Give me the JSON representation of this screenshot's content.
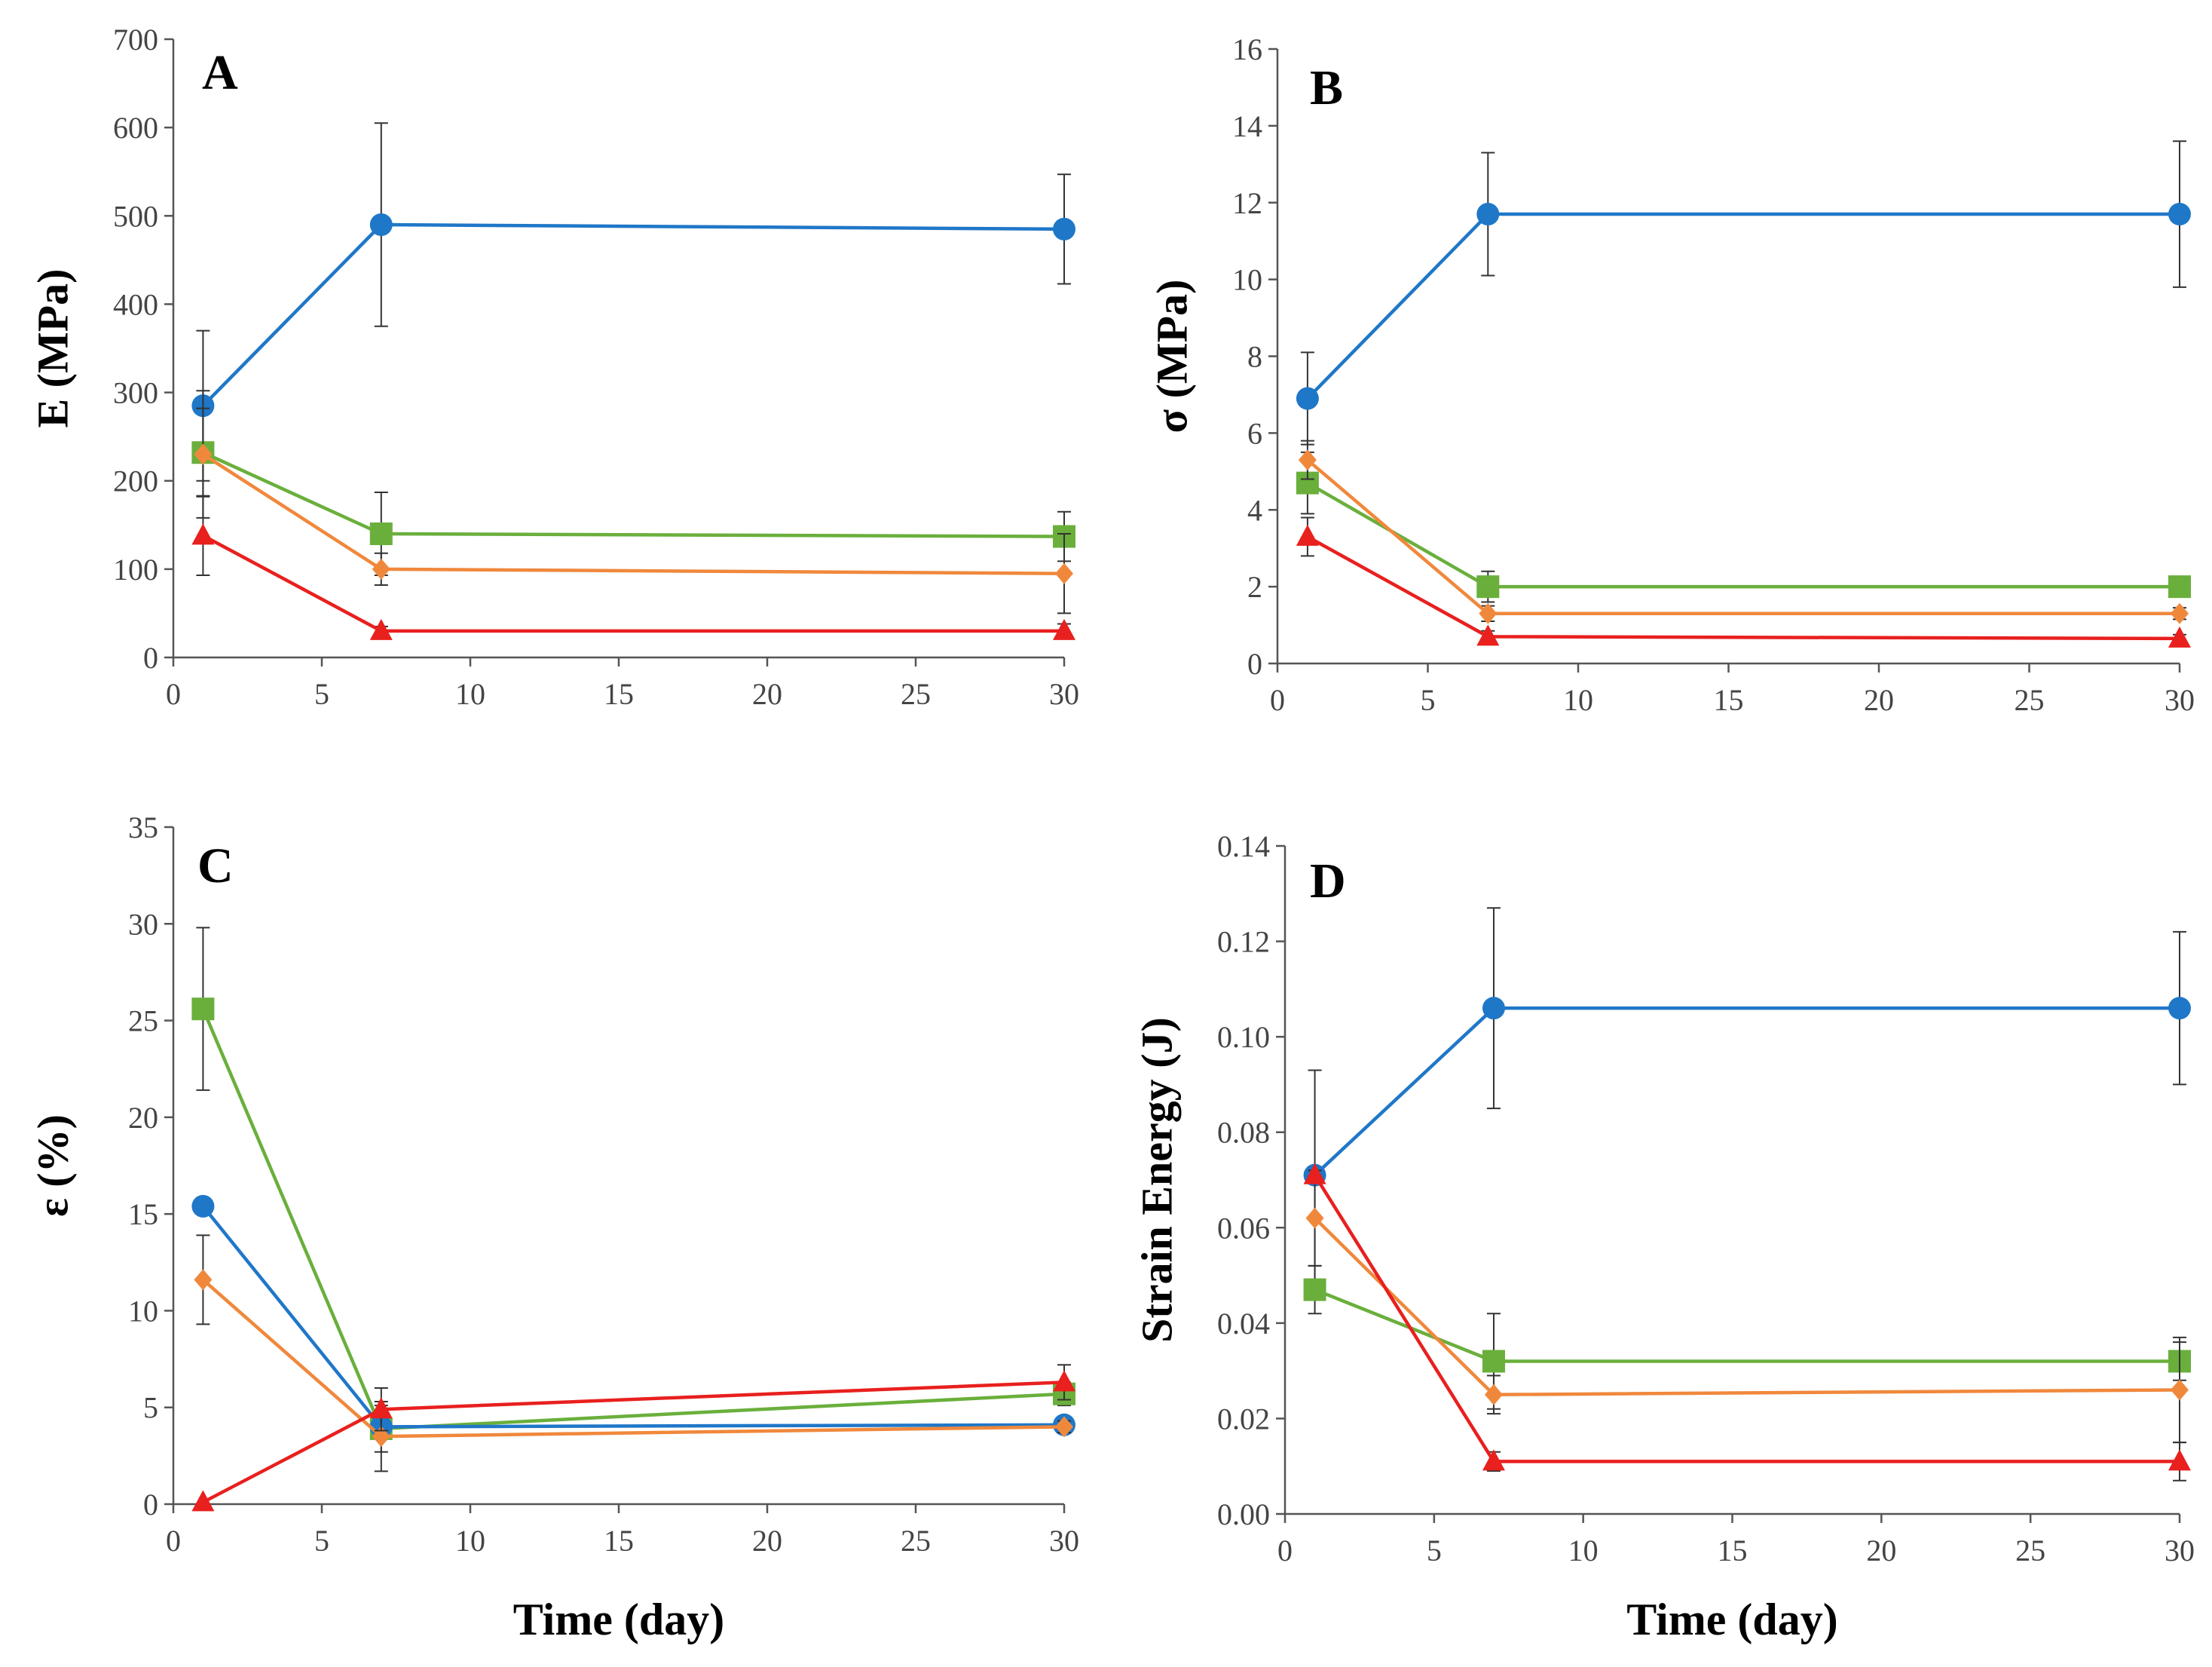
{
  "chart_data": [
    {
      "type": "line",
      "panel_label": "A",
      "xlabel": "",
      "ylabel": "E (MPa)",
      "xlim": [
        0,
        30
      ],
      "ylim": [
        0,
        700
      ],
      "xticks": [
        0,
        5,
        10,
        15,
        20,
        25,
        30
      ],
      "yticks": [
        0,
        100,
        200,
        300,
        400,
        500,
        600,
        700
      ],
      "x": [
        1,
        7,
        30
      ],
      "series": [
        {
          "name": "blue",
          "color": "#1F77C8",
          "marker": "circle",
          "values": [
            285,
            490,
            485
          ],
          "errors": [
            85,
            115,
            62
          ]
        },
        {
          "name": "green",
          "color": "#6AAF3C",
          "marker": "square",
          "values": [
            232,
            140,
            137
          ],
          "errors": [
            50,
            47,
            28
          ]
        },
        {
          "name": "orange",
          "color": "#F0883C",
          "marker": "diamond",
          "values": [
            230,
            100,
            95
          ],
          "errors": [
            72,
            18,
            45
          ]
        },
        {
          "name": "red",
          "color": "#E8201E",
          "marker": "triangle",
          "values": [
            138,
            30,
            30
          ],
          "errors": [
            45,
            5,
            8
          ]
        }
      ]
    },
    {
      "type": "line",
      "panel_label": "B",
      "xlabel": "",
      "ylabel": "σ (MPa)",
      "xlim": [
        0,
        30
      ],
      "ylim": [
        0,
        16
      ],
      "xticks": [
        0,
        5,
        10,
        15,
        20,
        25,
        30
      ],
      "yticks": [
        0,
        2,
        4,
        6,
        8,
        10,
        12,
        14,
        16
      ],
      "x": [
        1,
        7,
        30
      ],
      "series": [
        {
          "name": "blue",
          "color": "#1F77C8",
          "marker": "circle",
          "values": [
            6.9,
            11.7,
            11.7
          ],
          "errors": [
            1.2,
            1.6,
            1.9
          ]
        },
        {
          "name": "green",
          "color": "#6AAF3C",
          "marker": "square",
          "values": [
            4.7,
            2.0,
            2.0
          ],
          "errors": [
            0.8,
            0.4,
            0.2
          ]
        },
        {
          "name": "orange",
          "color": "#F0883C",
          "marker": "diamond",
          "values": [
            5.3,
            1.3,
            1.3
          ],
          "errors": [
            0.5,
            0.2,
            0.15
          ]
        },
        {
          "name": "red",
          "color": "#E8201E",
          "marker": "triangle",
          "values": [
            3.3,
            0.7,
            0.65
          ],
          "errors": [
            0.5,
            0.15,
            0.1
          ]
        }
      ]
    },
    {
      "type": "line",
      "panel_label": "C",
      "xlabel": "Time (day)",
      "ylabel": "ε (%)",
      "xlim": [
        0,
        30
      ],
      "ylim": [
        0,
        35
      ],
      "xticks": [
        0,
        5,
        10,
        15,
        20,
        25,
        30
      ],
      "yticks": [
        0,
        5,
        10,
        15,
        20,
        25,
        30,
        35
      ],
      "x": [
        1,
        7,
        30
      ],
      "series": [
        {
          "name": "green",
          "color": "#6AAF3C",
          "marker": "square",
          "values": [
            25.6,
            3.9,
            5.7
          ],
          "errors": [
            4.2,
            1.2,
            0.6
          ]
        },
        {
          "name": "blue",
          "color": "#1F77C8",
          "marker": "circle",
          "values": [
            15.4,
            4.0,
            4.1
          ],
          "errors": [
            0,
            0.6,
            0.3
          ]
        },
        {
          "name": "orange",
          "color": "#F0883C",
          "marker": "diamond",
          "values": [
            11.6,
            3.5,
            4.0
          ],
          "errors": [
            2.3,
            1.8,
            0.3
          ]
        },
        {
          "name": "red",
          "color": "#E8201E",
          "marker": "triangle",
          "values": [
            0.1,
            4.9,
            6.3
          ],
          "errors": [
            0,
            1.1,
            0.9
          ]
        }
      ]
    },
    {
      "type": "line",
      "panel_label": "D",
      "xlabel": "Time (day)",
      "ylabel": "Strain Energy (J)",
      "xlim": [
        0,
        30
      ],
      "ylim": [
        0,
        0.14
      ],
      "xticks": [
        0,
        5,
        10,
        15,
        20,
        25,
        30
      ],
      "yticks": [
        0,
        0.02,
        0.04,
        0.06,
        0.08,
        0.1,
        0.12,
        0.14
      ],
      "ytick_labels": [
        "0.00",
        "0.02",
        "0.04",
        "0.06",
        "0.08",
        "0.10",
        "0.12",
        "0.14"
      ],
      "x": [
        1,
        7,
        30
      ],
      "series": [
        {
          "name": "blue",
          "color": "#1F77C8",
          "marker": "circle",
          "values": [
            0.071,
            0.106,
            0.106
          ],
          "errors": [
            0.022,
            0.021,
            0.016
          ]
        },
        {
          "name": "green",
          "color": "#6AAF3C",
          "marker": "square",
          "values": [
            0.047,
            0.032,
            0.032
          ],
          "errors": [
            0.005,
            0.01,
            0.004
          ]
        },
        {
          "name": "orange",
          "color": "#F0883C",
          "marker": "diamond",
          "values": [
            0.062,
            0.025,
            0.026
          ],
          "errors": [
            0.01,
            0.004,
            0.011
          ]
        },
        {
          "name": "red",
          "color": "#E8201E",
          "marker": "triangle",
          "values": [
            0.071,
            0.011,
            0.011
          ],
          "errors": [
            0,
            0.002,
            0.004
          ]
        }
      ]
    }
  ]
}
